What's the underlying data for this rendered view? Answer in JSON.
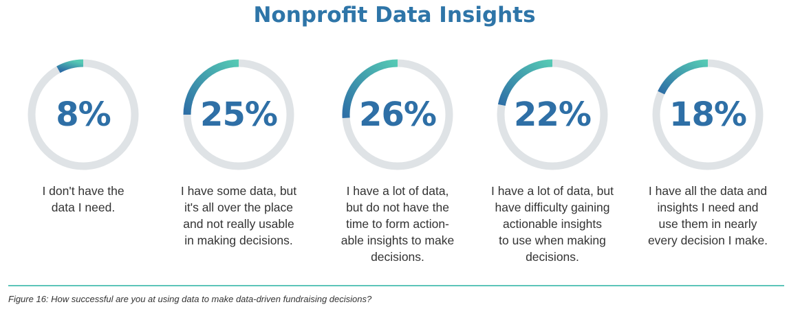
{
  "title": "Nonprofit Data Insights",
  "chart_data": {
    "type": "donut",
    "title": "Nonprofit Data Insights",
    "unit": "%",
    "max": 100,
    "items": [
      {
        "value": 8,
        "display": "8%",
        "label": "I don't have the\ndata I need."
      },
      {
        "value": 25,
        "display": "25%",
        "label": "I have some data, but\nit's all over the place\nand not really usable\nin making decisions."
      },
      {
        "value": 26,
        "display": "26%",
        "label": "I have a lot of data,\nbut do not have the\ntime to form action-\nable insights to make\ndecisions."
      },
      {
        "value": 22,
        "display": "22%",
        "label": "I have a lot of data, but\nhave difficulty gaining\nactionable insights\nto use when making\ndecisions."
      },
      {
        "value": 18,
        "display": "18%",
        "label": "I have all the data and\ninsights I need and\nuse them in nearly\nevery decision I make."
      }
    ]
  },
  "colors": {
    "title": "#2e75a8",
    "value_text": "#2e6fa6",
    "track": "#dfe3e6",
    "arc_start": "#2e6fa6",
    "arc_end": "#55c9b4",
    "divider": "#5cc4b9"
  },
  "footer": {
    "caption": "Figure 16: How successful are you at using data to make data-driven fundraising decisions?"
  }
}
